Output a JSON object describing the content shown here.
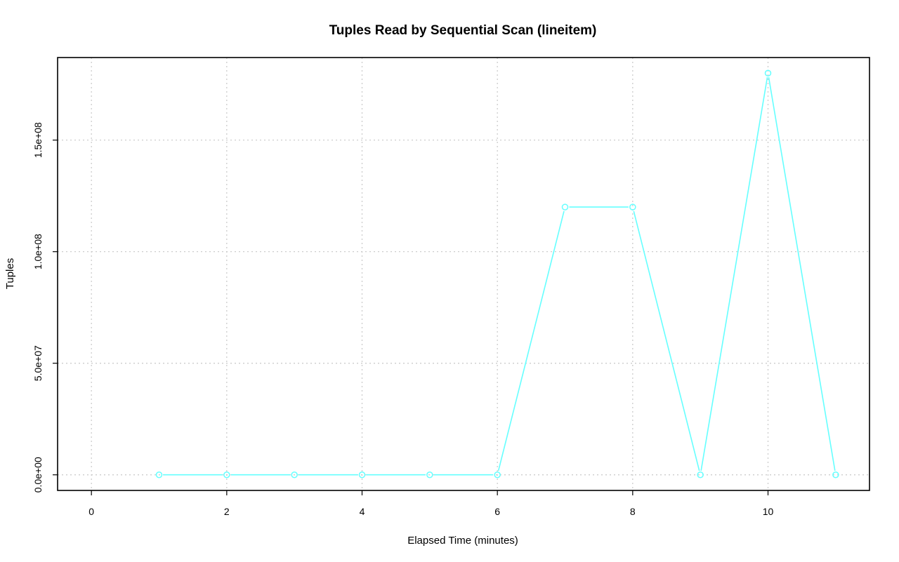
{
  "chart_data": {
    "type": "line",
    "title": "Tuples Read by Sequential Scan (lineitem)",
    "xlabel": "Elapsed Time (minutes)",
    "ylabel": "Tuples",
    "xlim": [
      -0.5,
      11.5
    ],
    "ylim": [
      -7000000,
      187000000
    ],
    "xticks": [
      0,
      2,
      4,
      6,
      8,
      10
    ],
    "xtick_labels": [
      "0",
      "2",
      "4",
      "6",
      "8",
      "10"
    ],
    "yticks": [
      0,
      50000000,
      100000000,
      150000000
    ],
    "ytick_labels": [
      "0.0e+00",
      "5.0e+07",
      "1.0e+08",
      "1.5e+08"
    ],
    "grid": true,
    "series": [
      {
        "color": "#66ffff",
        "marker": "open-circle",
        "x": [
          1,
          2,
          3,
          4,
          5,
          6,
          7,
          8,
          9,
          10,
          11
        ],
        "values": [
          0,
          0,
          0,
          0,
          0,
          0,
          120000000,
          120000000,
          0,
          180000000,
          0
        ]
      }
    ]
  }
}
